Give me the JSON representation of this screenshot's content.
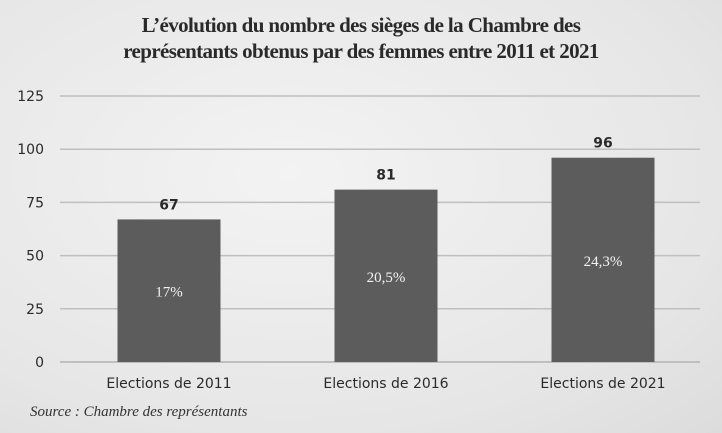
{
  "chart_data": {
    "type": "bar",
    "title_lines": [
      "L’évolution du nombre des sièges de la Chambre des",
      "représentants obtenus par des femmes entre 2011 et 2021"
    ],
    "categories": [
      "Elections de 2011",
      "Elections de 2016",
      "Elections de 2021"
    ],
    "values": [
      67,
      81,
      96
    ],
    "value_labels": [
      "67",
      "81",
      "96"
    ],
    "inner_labels": [
      "17%",
      "20,5%",
      "24,3%"
    ],
    "yticks": [
      "0",
      "25",
      "50",
      "75",
      "100",
      "125"
    ],
    "ylim": [
      0,
      125
    ],
    "grid": true,
    "xlabel": "",
    "ylabel": "",
    "colors": {
      "bar": "#5c5c5c",
      "grid": "#bfbfbf",
      "text": "#2a2a2a"
    }
  },
  "source": "Source : Chambre des représentants"
}
